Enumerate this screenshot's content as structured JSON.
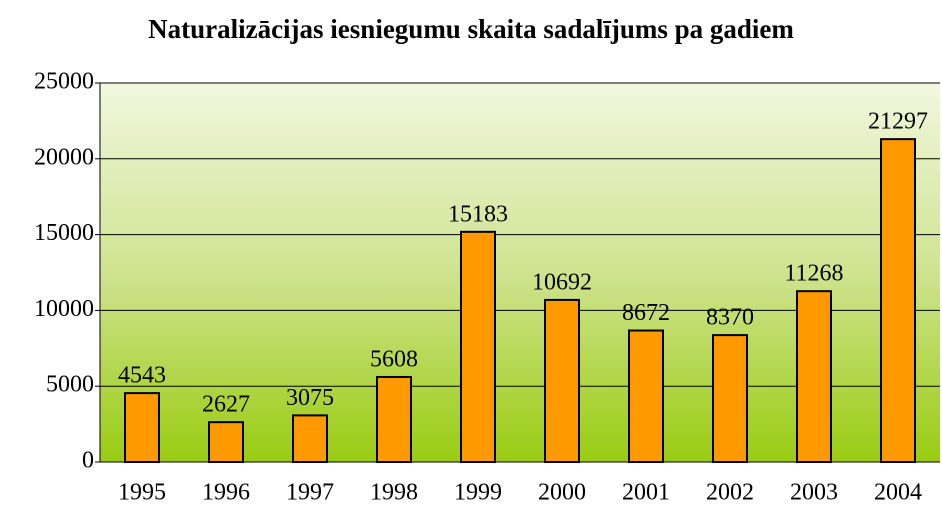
{
  "chart_data": {
    "type": "bar",
    "title": "Naturalizācijas iesniegumu skaita sadalījums pa gadiem",
    "categories": [
      "1995",
      "1996",
      "1997",
      "1998",
      "1999",
      "2000",
      "2001",
      "2002",
      "2003",
      "2004"
    ],
    "values": [
      4543,
      2627,
      3075,
      5608,
      15183,
      10692,
      8672,
      8370,
      11268,
      21297
    ],
    "color": "#ff9900",
    "ylim": [
      0,
      25000
    ],
    "yticks": [
      0,
      5000,
      10000,
      15000,
      20000,
      25000
    ],
    "grid": true
  }
}
